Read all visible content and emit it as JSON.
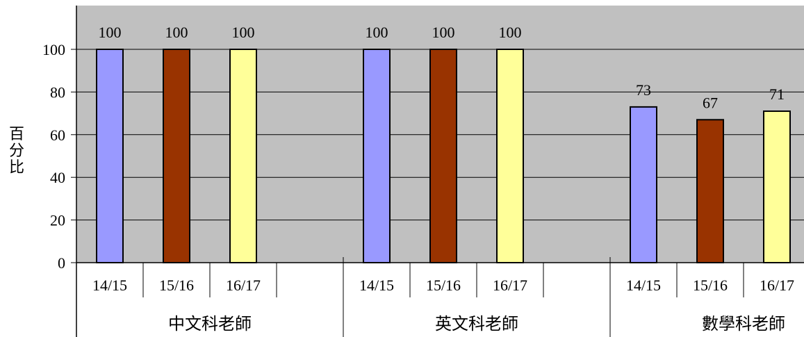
{
  "chart_data": {
    "type": "bar",
    "title": "",
    "ylabel": "百分比",
    "ylim": [
      0,
      100
    ],
    "yticks": [
      0,
      20,
      40,
      60,
      80,
      100
    ],
    "grid": true,
    "categories": [
      "14/15",
      "15/16",
      "16/17"
    ],
    "groups": [
      {
        "name": "中文科老師",
        "values": [
          100,
          100,
          100
        ]
      },
      {
        "name": "英文科老師",
        "values": [
          100,
          100,
          100
        ]
      },
      {
        "name": "數學科老師",
        "values": [
          73,
          67,
          71
        ]
      }
    ],
    "colors": {
      "plot_bg": "#C0C0C0",
      "bars": [
        "#9999FF",
        "#993300",
        "#FFFF99"
      ],
      "bar_stroke": "#000000",
      "grid": "#000000"
    }
  }
}
